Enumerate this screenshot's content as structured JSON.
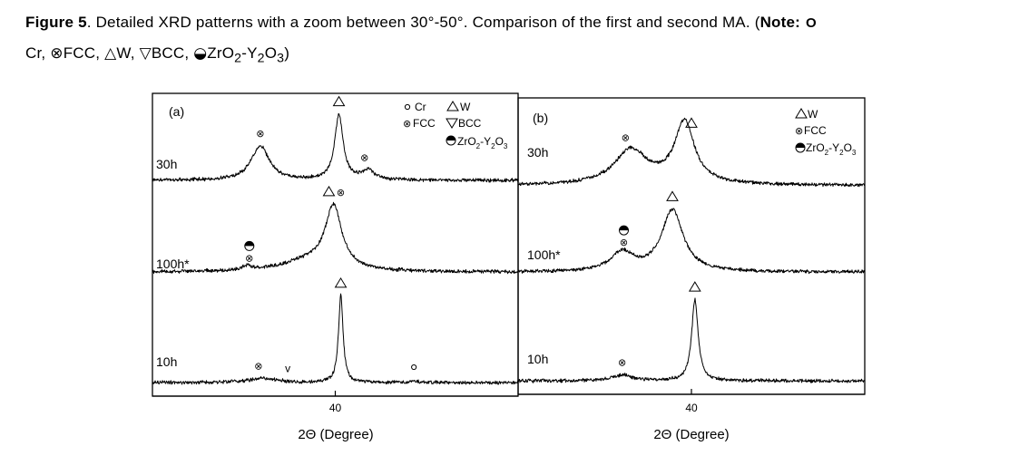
{
  "caption": {
    "label": "Figure 5",
    "text": ". Detailed XRD patterns with a zoom between 30°-50°. Comparison of the first and second MA. (",
    "note_label": "Note:",
    "note_o": "O",
    "line2_cr": "Cr,",
    "line2_fcc": "FCC,",
    "line2_w": "W,",
    "line2_bcc": "BCC,",
    "line2_zro": "ZrO",
    "line2_sub2a": "2",
    "line2_dash": "-Y",
    "line2_sub2b": "2",
    "line2_o": "O",
    "line2_sub3": "3",
    "line2_close": ")"
  },
  "colors": {
    "line": "#000000",
    "background": "#ffffff"
  },
  "chart_data": [
    {
      "type": "line",
      "panel_label": "(a)",
      "xlabel": "2Θ (Degree)",
      "xlim": [
        30,
        50
      ],
      "xticks": [
        40
      ],
      "legend": {
        "position": "top-right",
        "entries": {
          "cr": "Cr",
          "w": "W",
          "fcc": "FCC",
          "bcc": "BCC",
          "zro_a": "ZrO",
          "zro_sub1": "2",
          "zro_b": "-Y",
          "zro_sub2": "2",
          "zro_c": "O",
          "zro_sub3": "3"
        }
      },
      "series": [
        {
          "name": "30h",
          "baseline": 0.1,
          "peaks": [
            {
              "x": 35.9,
              "h": 0.42,
              "w": 1.2
            },
            {
              "x": 40.2,
              "h": 0.8,
              "w": 0.55
            },
            {
              "x": 41.8,
              "h": 0.12,
              "w": 0.8
            }
          ],
          "markers": [
            {
              "x": 35.9,
              "symbol": "fcc"
            },
            {
              "x": 40.2,
              "symbol": "w"
            },
            {
              "x": 41.6,
              "symbol": "fcc"
            }
          ]
        },
        {
          "name": "100h*",
          "baseline": 0.05,
          "peaks": [
            {
              "x": 35.2,
              "h": 0.05,
              "w": 0.6
            },
            {
              "x": 38.5,
              "h": 0.12,
              "w": 3.5
            },
            {
              "x": 39.9,
              "h": 0.72,
              "w": 1.1
            }
          ],
          "markers": [
            {
              "x": 35.3,
              "symbol": "zro_fcc"
            },
            {
              "x": 39.9,
              "symbol": "w_fcc"
            }
          ]
        },
        {
          "name": "10h",
          "baseline": 0.03,
          "peaks": [
            {
              "x": 36.0,
              "h": 0.05,
              "w": 1.8
            },
            {
              "x": 40.3,
              "h": 1.0,
              "w": 0.3
            },
            {
              "x": 44.3,
              "h": 0.03,
              "w": 0.3
            }
          ],
          "markers": [
            {
              "x": 35.8,
              "symbol": "fcc"
            },
            {
              "x": 37.4,
              "symbol": "bcc"
            },
            {
              "x": 40.3,
              "symbol": "w"
            },
            {
              "x": 44.3,
              "symbol": "cr"
            }
          ]
        }
      ]
    },
    {
      "type": "line",
      "panel_label": "(b)",
      "xlabel": "2Θ (Degree)",
      "xlim": [
        30,
        50
      ],
      "xticks": [
        40
      ],
      "legend": {
        "position": "top-right",
        "entries": {
          "w": "W",
          "fcc": "FCC",
          "zro_a": "ZrO",
          "zro_sub1": "2",
          "zro_b": "-Y",
          "zro_sub2": "2",
          "zro_c": "O",
          "zro_sub3": "3"
        }
      },
      "series": [
        {
          "name": "30h",
          "baseline": 0.05,
          "peaks": [
            {
              "x": 36.5,
              "h": 0.35,
              "w": 2.3
            },
            {
              "x": 39.6,
              "h": 0.62,
              "w": 1.4
            }
          ],
          "markers": [
            {
              "x": 36.2,
              "symbol": "fcc"
            },
            {
              "x": 40.0,
              "symbol": "w"
            }
          ]
        },
        {
          "name": "100h*",
          "baseline": 0.05,
          "peaks": [
            {
              "x": 36.0,
              "h": 0.22,
              "w": 1.6
            },
            {
              "x": 38.9,
              "h": 0.72,
              "w": 1.5
            }
          ],
          "markers": [
            {
              "x": 36.1,
              "symbol": "zro_fcc"
            },
            {
              "x": 38.9,
              "symbol": "w"
            }
          ]
        },
        {
          "name": "10h",
          "baseline": 0.03,
          "peaks": [
            {
              "x": 36.0,
              "h": 0.07,
              "w": 1.5
            },
            {
              "x": 40.2,
              "h": 1.0,
              "w": 0.45
            }
          ],
          "markers": [
            {
              "x": 36.0,
              "symbol": "fcc"
            },
            {
              "x": 40.2,
              "symbol": "w"
            }
          ]
        }
      ]
    }
  ]
}
